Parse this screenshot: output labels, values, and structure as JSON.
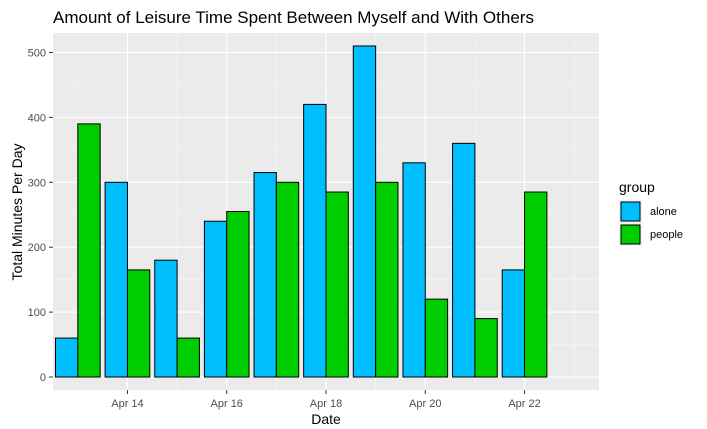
{
  "chart_data": {
    "type": "bar",
    "title": "Amount of Leisure Time Spent Between Myself and With Others",
    "xlabel": "Date",
    "ylabel": "Total Minutes Per Day",
    "x": [
      "2024-04-13",
      "2024-04-14",
      "2024-04-15",
      "2024-04-16",
      "2024-04-17",
      "2024-04-18",
      "2024-04-19",
      "2024-04-20",
      "2024-04-21",
      "2024-04-22"
    ],
    "x_tick_labels": [
      "Apr 14",
      "Apr 16",
      "Apr 18",
      "Apr 20",
      "Apr 22"
    ],
    "x_tick_dates": [
      "2024-04-14",
      "2024-04-16",
      "2024-04-18",
      "2024-04-20",
      "2024-04-22"
    ],
    "y_ticks": [
      0,
      100,
      200,
      300,
      400,
      500
    ],
    "ylim": [
      -20,
      530
    ],
    "xlim": [
      "2024-04-12T12:00",
      "2024-04-23T12:00"
    ],
    "grid": true,
    "legend_title": "group",
    "legend_position": "right",
    "series": [
      {
        "name": "alone",
        "color": "#00bfff",
        "values": [
          60,
          300,
          180,
          240,
          315,
          420,
          510,
          330,
          360,
          165
        ]
      },
      {
        "name": "people",
        "color": "#00cd00",
        "values": [
          390,
          165,
          60,
          255,
          300,
          285,
          300,
          120,
          90,
          285
        ]
      }
    ]
  },
  "colors": {
    "panel": "#ebebeb",
    "grid_major": "#ffffff",
    "bar_outline": "#000000"
  }
}
